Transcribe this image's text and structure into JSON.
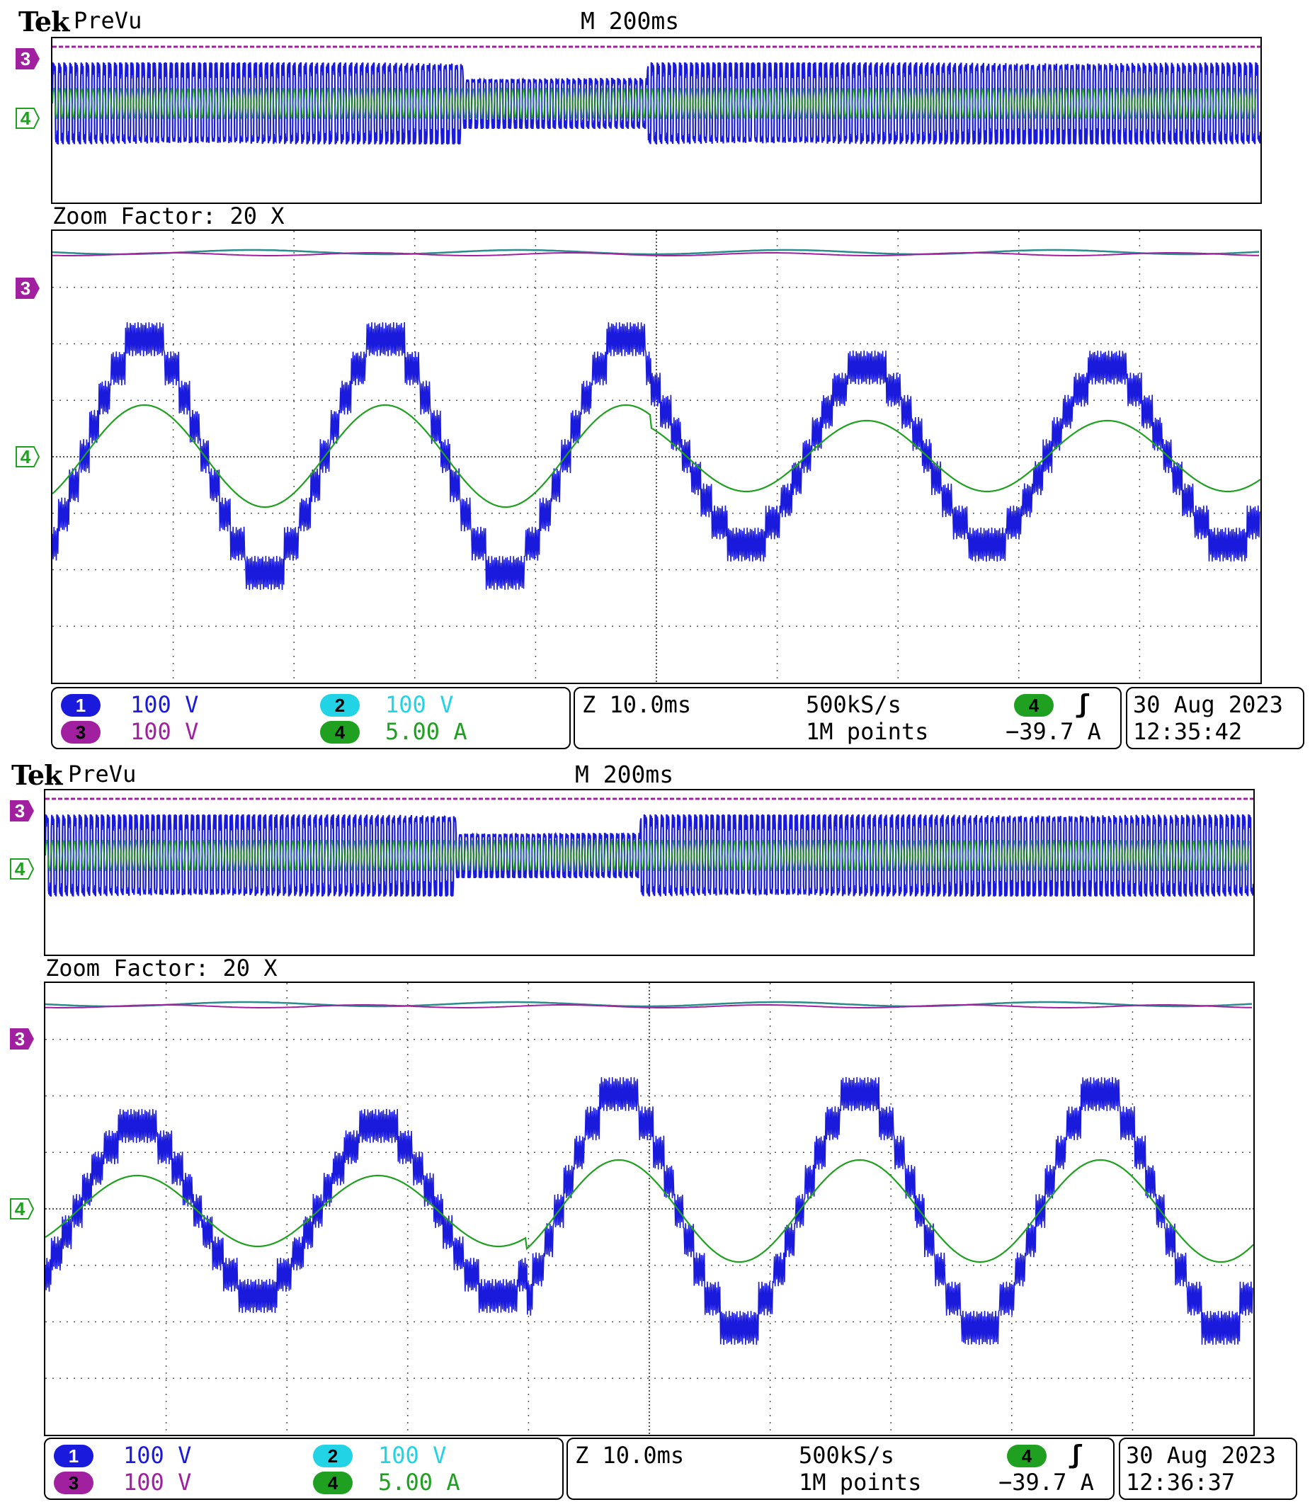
{
  "screens": [
    {
      "brand": "Tek",
      "mode": "PreVu",
      "timebase": "M 200ms",
      "zoom_label": "Zoom Factor: 20 X",
      "markers": {
        "ch3": "3",
        "ch4": "4"
      },
      "channels": [
        {
          "num": "1",
          "scale": "100 V",
          "color": "#1a1adc"
        },
        {
          "num": "2",
          "scale": "100 V",
          "color": "#22d3e6"
        },
        {
          "num": "3",
          "scale": "100 V",
          "color": "#a020a0"
        },
        {
          "num": "4",
          "scale": "5.00 A",
          "color": "#20a020"
        }
      ],
      "zoom_time": "Z 10.0ms",
      "sample_rate": "500kS/s",
      "record_length": "1M points",
      "trigger_source": "4",
      "trigger_slope_icon": "rising-edge-icon",
      "trigger_slope_glyph": "ʃ",
      "trigger_level": "−39.7 A",
      "date": "30 Aug 2023",
      "time": "12:35:42"
    },
    {
      "brand": "Tek",
      "mode": "PreVu",
      "timebase": "M 200ms",
      "zoom_label": "Zoom Factor: 20 X",
      "markers": {
        "ch3": "3",
        "ch4": "4"
      },
      "channels": [
        {
          "num": "1",
          "scale": "100 V",
          "color": "#1a1adc"
        },
        {
          "num": "2",
          "scale": "100 V",
          "color": "#22d3e6"
        },
        {
          "num": "3",
          "scale": "100 V",
          "color": "#a020a0"
        },
        {
          "num": "4",
          "scale": "5.00 A",
          "color": "#20a020"
        }
      ],
      "zoom_time": "Z 10.0ms",
      "sample_rate": "500kS/s",
      "record_length": "1M points",
      "trigger_source": "4",
      "trigger_slope_icon": "rising-edge-icon",
      "trigger_slope_glyph": "ʃ",
      "trigger_level": "−39.7 A",
      "date": "30 Aug 2023",
      "time": "12:36:37"
    }
  ],
  "colors": {
    "ch1": "#1a1adc",
    "ch2": "#22d3e6",
    "ch3": "#a020a0",
    "ch4": "#20a020",
    "trigger": "#f0a030",
    "grid": "#555555"
  }
}
